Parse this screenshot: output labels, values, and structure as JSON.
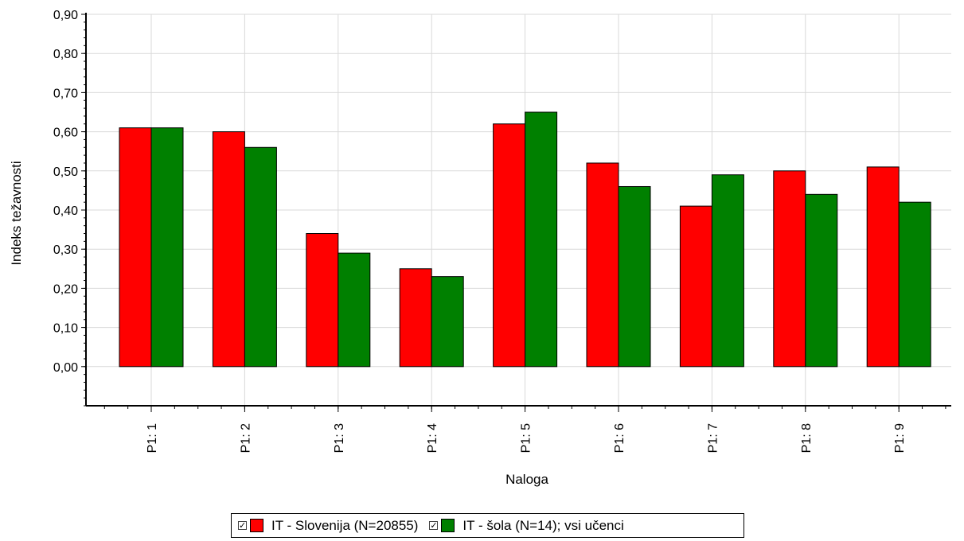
{
  "chart_data": {
    "type": "bar",
    "title": "",
    "xlabel": "Naloga",
    "ylabel": "Indeks težavnosti",
    "ylim": [
      -0.1,
      0.9
    ],
    "y_ticks": [
      "0,00",
      "0,10",
      "0,20",
      "0,30",
      "0,40",
      "0,50",
      "0,60",
      "0,70",
      "0,80",
      "0,90"
    ],
    "categories": [
      "P1: 1",
      "P1: 2",
      "P1: 3",
      "P1: 4",
      "P1: 5",
      "P1: 6",
      "P1: 7",
      "P1: 8",
      "P1: 9"
    ],
    "series": [
      {
        "name": "IT - Slovenija (N=20855)",
        "color": "#ff0000",
        "values": [
          0.61,
          0.6,
          0.34,
          0.25,
          0.62,
          0.52,
          0.41,
          0.5,
          0.51
        ]
      },
      {
        "name": "IT - šola (N=14); vsi učenci",
        "color": "#008000",
        "values": [
          0.61,
          0.56,
          0.29,
          0.23,
          0.65,
          0.46,
          0.49,
          0.44,
          0.42
        ]
      }
    ],
    "grid": true,
    "legend_position": "bottom"
  },
  "legend": {
    "items": [
      {
        "label": "IT - Slovenija (N=20855)",
        "checked": true,
        "color": "#ff0000"
      },
      {
        "label": "IT - šola (N=14); vsi učenci",
        "checked": true,
        "color": "#008000"
      }
    ]
  }
}
